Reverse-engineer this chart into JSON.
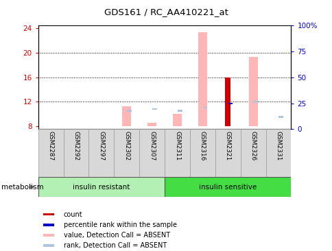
{
  "title": "GDS161 / RC_AA410221_at",
  "samples": [
    "GSM2287",
    "GSM2292",
    "GSM2297",
    "GSM2302",
    "GSM2307",
    "GSM2311",
    "GSM2316",
    "GSM2321",
    "GSM2326",
    "GSM2331"
  ],
  "ylim_left": [
    7.5,
    24.5
  ],
  "ylim_right": [
    0,
    100
  ],
  "yticks_left": [
    8,
    12,
    16,
    20,
    24
  ],
  "yticks_right": [
    0,
    25,
    50,
    75,
    100
  ],
  "yticklabels_right": [
    "0",
    "25",
    "50",
    "75",
    "100%"
  ],
  "bar_bottom": 8.0,
  "value_absent": [
    null,
    null,
    null,
    11.3,
    8.6,
    10.0,
    23.3,
    null,
    19.3,
    null
  ],
  "rank_absent": [
    null,
    null,
    null,
    10.5,
    10.8,
    10.5,
    11.0,
    null,
    12.0,
    9.5
  ],
  "count_value": [
    null,
    null,
    null,
    null,
    null,
    null,
    null,
    16.0,
    null,
    null
  ],
  "percentile_rank": [
    null,
    null,
    null,
    null,
    null,
    null,
    null,
    11.7,
    null,
    null
  ],
  "group_labels": [
    "insulin resistant",
    "insulin sensitive"
  ],
  "metabolism_label": "metabolism",
  "legend_items": [
    {
      "color": "#cc0000",
      "label": "count"
    },
    {
      "color": "#0000cc",
      "label": "percentile rank within the sample"
    },
    {
      "color": "#ffb6b6",
      "label": "value, Detection Call = ABSENT"
    },
    {
      "color": "#b0c4de",
      "label": "rank, Detection Call = ABSENT"
    }
  ],
  "bar_width": 0.35,
  "rank_marker_size": 0.28,
  "left_tick_color": "#cc0000",
  "right_tick_color": "#0000cc",
  "group1_color": "#b3f0b3",
  "group2_color": "#44dd44"
}
